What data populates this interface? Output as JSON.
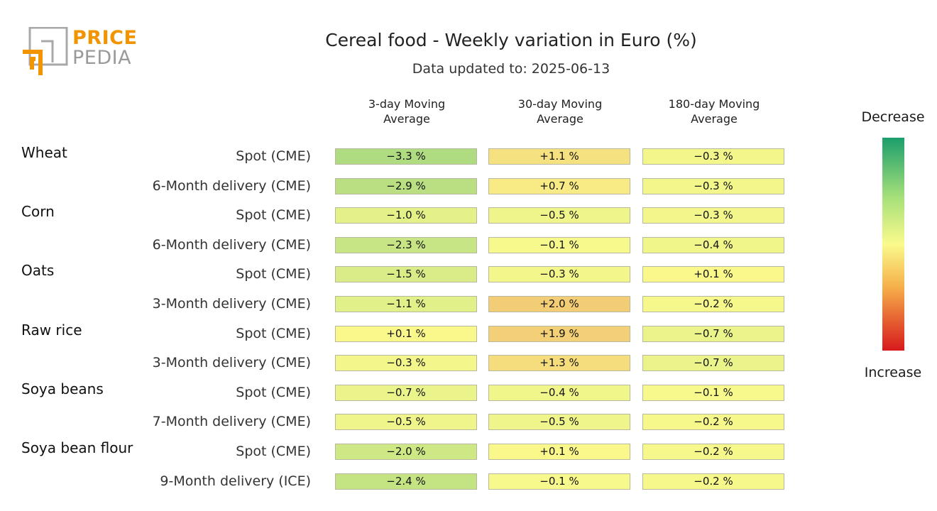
{
  "brand": {
    "word1": "PRICE",
    "word2": "PEDIA"
  },
  "header": {
    "title": "Cereal food - Weekly variation in Euro (%)",
    "subtitle": "Data updated to: 2025-06-13"
  },
  "legend": {
    "top": "Decrease",
    "bottom": "Increase"
  },
  "colors": {
    "decrease": "#1b9e6b",
    "neutral": "#fafa8c",
    "increase": "#d7191c"
  },
  "chart_data": {
    "type": "heatmap",
    "columns": [
      "3-day Moving Average",
      "30-day Moving Average",
      "180-day Moving Average"
    ],
    "column_lines": [
      [
        "3-day Moving",
        "Average"
      ],
      [
        "30-day Moving",
        "Average"
      ],
      [
        "180-day Moving",
        "Average"
      ]
    ],
    "groups": [
      {
        "name": "Wheat",
        "rows": [
          {
            "label": "Spot (CME)",
            "values": [
              -3.3,
              1.1,
              -0.3
            ],
            "texts": [
              "−3.3 %",
              "+1.1 %",
              "−0.3 %"
            ]
          },
          {
            "label": "6-Month delivery (CME)",
            "values": [
              -2.9,
              0.7,
              -0.3
            ],
            "texts": [
              "−2.9 %",
              "+0.7 %",
              "−0.3 %"
            ]
          }
        ]
      },
      {
        "name": "Corn",
        "rows": [
          {
            "label": "Spot (CME)",
            "values": [
              -1.0,
              -0.5,
              -0.3
            ],
            "texts": [
              "−1.0 %",
              "−0.5 %",
              "−0.3 %"
            ]
          },
          {
            "label": "6-Month delivery (CME)",
            "values": [
              -2.3,
              -0.1,
              -0.4
            ],
            "texts": [
              "−2.3 %",
              "−0.1 %",
              "−0.4 %"
            ]
          }
        ]
      },
      {
        "name": "Oats",
        "rows": [
          {
            "label": "Spot (CME)",
            "values": [
              -1.5,
              -0.3,
              0.1
            ],
            "texts": [
              "−1.5 %",
              "−0.3 %",
              "+0.1 %"
            ]
          },
          {
            "label": "3-Month delivery (CME)",
            "values": [
              -1.1,
              2.0,
              -0.2
            ],
            "texts": [
              "−1.1 %",
              "+2.0 %",
              "−0.2 %"
            ]
          }
        ]
      },
      {
        "name": "Raw rice",
        "rows": [
          {
            "label": "Spot (CME)",
            "values": [
              0.1,
              1.9,
              -0.7
            ],
            "texts": [
              "+0.1 %",
              "+1.9 %",
              "−0.7 %"
            ]
          },
          {
            "label": "3-Month delivery (CME)",
            "values": [
              -0.3,
              1.3,
              -0.7
            ],
            "texts": [
              "−0.3 %",
              "+1.3 %",
              "−0.7 %"
            ]
          }
        ]
      },
      {
        "name": "Soya beans",
        "rows": [
          {
            "label": "Spot (CME)",
            "values": [
              -0.7,
              -0.4,
              -0.1
            ],
            "texts": [
              "−0.7 %",
              "−0.4 %",
              "−0.1 %"
            ]
          },
          {
            "label": "7-Month delivery (CME)",
            "values": [
              -0.5,
              -0.5,
              -0.2
            ],
            "texts": [
              "−0.5 %",
              "−0.5 %",
              "−0.2 %"
            ]
          }
        ]
      },
      {
        "name": "Soya bean flour",
        "rows": [
          {
            "label": "Spot (CME)",
            "values": [
              -2.0,
              0.1,
              -0.2
            ],
            "texts": [
              "−2.0 %",
              "+0.1 %",
              "−0.2 %"
            ]
          },
          {
            "label": "9-Month delivery (ICE)",
            "values": [
              -2.4,
              -0.1,
              -0.2
            ],
            "texts": [
              "−2.4 %",
              "−0.1 %",
              "−0.2 %"
            ]
          }
        ]
      }
    ]
  }
}
